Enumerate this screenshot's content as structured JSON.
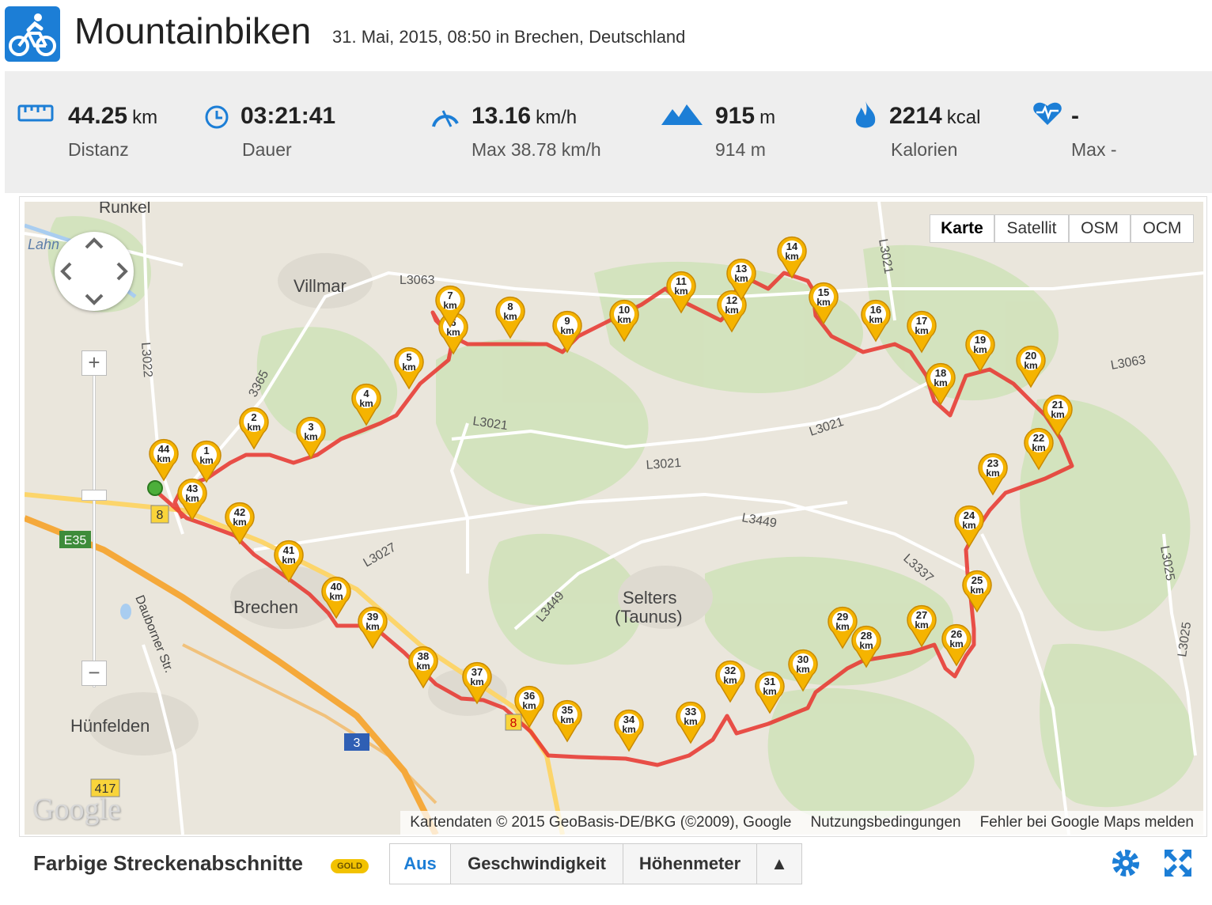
{
  "header": {
    "sport_icon": "cyclist-icon",
    "title": "Mountainbiken",
    "subtitle": "31. Mai, 2015, 08:50 in Brechen, Deutschland"
  },
  "stats": {
    "distance": {
      "icon": "ruler-icon",
      "value": "44.25",
      "unit": "km",
      "label": "Distanz"
    },
    "duration": {
      "icon": "clock-icon",
      "value": "03:21:41",
      "label": "Dauer"
    },
    "speed": {
      "icon": "speedometer-icon",
      "value": "13.16",
      "unit": "km/h",
      "label": "Max 38.78 km/h"
    },
    "ascent": {
      "icon": "mountains-icon",
      "value": "915",
      "unit": "m",
      "label": "914 m"
    },
    "calories": {
      "icon": "flame-icon",
      "value": "2214",
      "unit": "kcal",
      "label": "Kalorien"
    },
    "heart": {
      "icon": "heart-rate-icon",
      "value": "-",
      "label": "Max -"
    }
  },
  "map": {
    "types": [
      "Karte",
      "Satellit",
      "OSM",
      "OCM"
    ],
    "active_type": "Karte",
    "labels": {
      "runkel": "Runkel",
      "lahn": "Lahn",
      "villmar": "Villmar",
      "brechen": "Brechen",
      "selters1": "Selters",
      "selters2": "(Taunus)",
      "huenfelden": "Hünfelden",
      "daubornerstr": "Dauborner Str.",
      "l3063a": "L3063",
      "l3063b": "L3063",
      "l3021a": "L3021",
      "l3021b": "L3021",
      "l3021c": "L3021",
      "l3021d": "L3021",
      "l3022": "L3022",
      "l3365": "3365",
      "l3027": "L3027",
      "l3449a": "L3449",
      "l3449b": "L3449",
      "l3337": "L3337",
      "l3025a": "L3025",
      "l3025b": "L3025",
      "e35": "E35",
      "a3": "3",
      "b8a": "8",
      "b8b": "8",
      "b417": "417"
    },
    "zoom_in": "+",
    "zoom_out": "−",
    "google_logo": "Google",
    "attribution": "Kartendaten © 2015 GeoBasis-DE/BKG (©2009), Google",
    "terms": "Nutzungsbedingungen",
    "report": "Fehler bei Google Maps melden",
    "km_unit": "km",
    "markers": [
      "1",
      "2",
      "3",
      "4",
      "5",
      "6",
      "7",
      "8",
      "9",
      "10",
      "11",
      "12",
      "13",
      "14",
      "15",
      "16",
      "17",
      "18",
      "19",
      "20",
      "21",
      "22",
      "23",
      "24",
      "25",
      "26",
      "27",
      "28",
      "29",
      "30",
      "31",
      "32",
      "33",
      "34",
      "35",
      "36",
      "37",
      "38",
      "39",
      "40",
      "41",
      "42",
      "43",
      "44"
    ],
    "route_color": "#e8332d",
    "marker_color": "#f5b400"
  },
  "toolbar": {
    "title": "Farbige Streckenabschnitte",
    "badge": "GOLD",
    "options": [
      "Aus",
      "Geschwindigkeit",
      "Höhenmeter"
    ],
    "active_option": "Aus",
    "expand_arrow": "▲",
    "settings_icon": "gear-icon",
    "fullscreen_icon": "fullscreen-icon",
    "accent": "#1c7ed6"
  }
}
